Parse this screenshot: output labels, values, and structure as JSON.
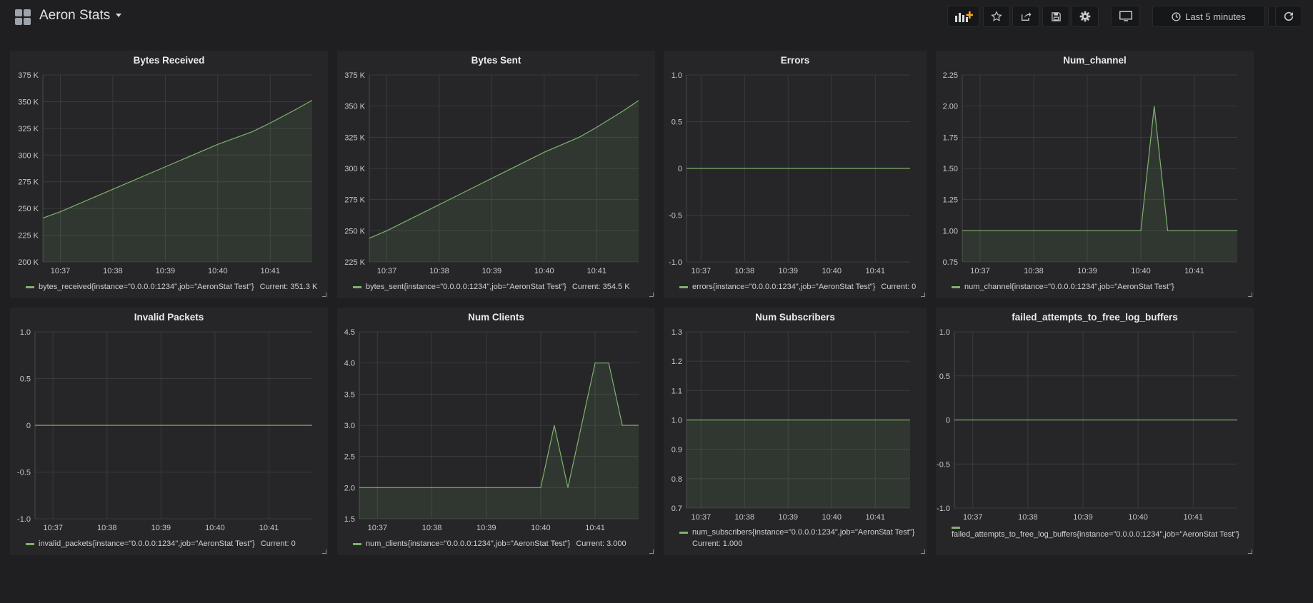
{
  "header": {
    "title": "Aeron Stats",
    "time_range_label": "Last 5 minutes"
  },
  "colors": {
    "series": "#7eb26d",
    "background": "#1f1f21",
    "panel": "#262628"
  },
  "panels": [
    {
      "title": "Bytes Received",
      "legend": "bytes_received{instance=\"0.0.0.0:1234\",job=\"AeronStat Test\"}",
      "current": "Current: 351.3 K",
      "chart_data": {
        "type": "area",
        "title": "Bytes Received",
        "x": [
          "10:36:40",
          "10:37:00",
          "10:38:00",
          "10:39:00",
          "10:40:00",
          "10:40:40",
          "10:41:00",
          "10:41:30",
          "10:41:48"
        ],
        "series": [
          {
            "name": "bytes_received{instance=\"0.0.0.0:1234\",job=\"AeronStat Test\"}",
            "values": [
              241000,
              247000,
              268000,
              289000,
              310000,
              322000,
              330000,
              343000,
              351300
            ]
          }
        ],
        "x_ticks": [
          "10:37",
          "10:38",
          "10:39",
          "10:40",
          "10:41"
        ],
        "y_ticks": [
          "375 K",
          "350 K",
          "325 K",
          "300 K",
          "275 K",
          "250 K",
          "225 K",
          "200 K"
        ],
        "ylim": [
          200000,
          375000
        ],
        "xlim": [
          "10:36:40",
          "10:41:48"
        ],
        "grid": true
      }
    },
    {
      "title": "Bytes Sent",
      "legend": "bytes_sent{instance=\"0.0.0.0:1234\",job=\"AeronStat Test\"}",
      "current": "Current: 354.5 K",
      "chart_data": {
        "type": "area",
        "title": "Bytes Sent",
        "x": [
          "10:36:40",
          "10:37:00",
          "10:38:00",
          "10:39:00",
          "10:40:00",
          "10:40:40",
          "10:41:00",
          "10:41:30",
          "10:41:48"
        ],
        "series": [
          {
            "name": "bytes_sent{instance=\"0.0.0.0:1234\",job=\"AeronStat Test\"}",
            "values": [
              244000,
              250000,
              271000,
              292000,
              313000,
              325000,
              333000,
              346000,
              354500
            ]
          }
        ],
        "x_ticks": [
          "10:37",
          "10:38",
          "10:39",
          "10:40",
          "10:41"
        ],
        "y_ticks": [
          "375 K",
          "350 K",
          "325 K",
          "300 K",
          "275 K",
          "250 K",
          "225 K"
        ],
        "ylim": [
          225000,
          375000
        ],
        "xlim": [
          "10:36:40",
          "10:41:48"
        ],
        "grid": true
      }
    },
    {
      "title": "Errors",
      "legend": "errors{instance=\"0.0.0.0:1234\",job=\"AeronStat Test\"}",
      "current": "Current: 0",
      "chart_data": {
        "type": "line",
        "title": "Errors",
        "x": [
          "10:36:40",
          "10:41:48"
        ],
        "series": [
          {
            "name": "errors{instance=\"0.0.0.0:1234\",job=\"AeronStat Test\"}",
            "values": [
              0,
              0
            ]
          }
        ],
        "x_ticks": [
          "10:37",
          "10:38",
          "10:39",
          "10:40",
          "10:41"
        ],
        "y_ticks": [
          "1.0",
          "0.5",
          "0",
          "-0.5",
          "-1.0"
        ],
        "ylim": [
          -1,
          1
        ],
        "xlim": [
          "10:36:40",
          "10:41:48"
        ],
        "grid": true
      }
    },
    {
      "title": "Num_channel",
      "legend": "num_channel{instance=\"0.0.0.0:1234\",job=\"AeronStat Test\"}",
      "current": "",
      "chart_data": {
        "type": "area",
        "title": "Num_channel",
        "x": [
          "10:36:40",
          "10:40:00",
          "10:40:15",
          "10:40:30",
          "10:41:48"
        ],
        "series": [
          {
            "name": "num_channel{instance=\"0.0.0.0:1234\",job=\"AeronStat Test\"}",
            "values": [
              1,
              1,
              2,
              1,
              1
            ]
          }
        ],
        "x_ticks": [
          "10:37",
          "10:38",
          "10:39",
          "10:40",
          "10:41"
        ],
        "y_ticks": [
          "2.25",
          "2.00",
          "1.75",
          "1.50",
          "1.25",
          "1.00",
          "0.75"
        ],
        "ylim": [
          0.75,
          2.25
        ],
        "xlim": [
          "10:36:40",
          "10:41:48"
        ],
        "grid": true
      }
    },
    {
      "title": "Invalid Packets",
      "legend": "invalid_packets{instance=\"0.0.0.0:1234\",job=\"AeronStat Test\"}",
      "current": "Current: 0",
      "chart_data": {
        "type": "line",
        "title": "Invalid Packets",
        "x": [
          "10:36:40",
          "10:41:48"
        ],
        "series": [
          {
            "name": "invalid_packets{instance=\"0.0.0.0:1234\",job=\"AeronStat Test\"}",
            "values": [
              0,
              0
            ]
          }
        ],
        "x_ticks": [
          "10:37",
          "10:38",
          "10:39",
          "10:40",
          "10:41"
        ],
        "y_ticks": [
          "1.0",
          "0.5",
          "0",
          "-0.5",
          "-1.0"
        ],
        "ylim": [
          -1,
          1
        ],
        "xlim": [
          "10:36:40",
          "10:41:48"
        ],
        "grid": true
      }
    },
    {
      "title": "Num Clients",
      "legend": "num_clients{instance=\"0.0.0.0:1234\",job=\"AeronStat Test\"}",
      "current": "Current: 3.000",
      "chart_data": {
        "type": "area",
        "title": "Num Clients",
        "x": [
          "10:36:40",
          "10:40:00",
          "10:40:15",
          "10:40:30",
          "10:41:00",
          "10:41:15",
          "10:41:30",
          "10:41:48"
        ],
        "series": [
          {
            "name": "num_clients{instance=\"0.0.0.0:1234\",job=\"AeronStat Test\"}",
            "values": [
              2,
              2,
              3,
              2,
              4,
              4,
              3,
              3
            ]
          }
        ],
        "x_ticks": [
          "10:37",
          "10:38",
          "10:39",
          "10:40",
          "10:41"
        ],
        "y_ticks": [
          "4.5",
          "4.0",
          "3.5",
          "3.0",
          "2.5",
          "2.0",
          "1.5"
        ],
        "ylim": [
          1.5,
          4.5
        ],
        "xlim": [
          "10:36:40",
          "10:41:48"
        ],
        "grid": true
      }
    },
    {
      "title": "Num Subscribers",
      "legend": "num_subscribers{instance=\"0.0.0.0:1234\",job=\"AeronStat Test\"}",
      "current": "Current: 1.000",
      "chart_data": {
        "type": "area",
        "title": "Num Subscribers",
        "x": [
          "10:36:40",
          "10:41:48"
        ],
        "series": [
          {
            "name": "num_subscribers{instance=\"0.0.0.0:1234\",job=\"AeronStat Test\"}",
            "values": [
              1,
              1
            ]
          }
        ],
        "x_ticks": [
          "10:37",
          "10:38",
          "10:39",
          "10:40",
          "10:41"
        ],
        "y_ticks": [
          "1.3",
          "1.2",
          "1.1",
          "1.0",
          "0.9",
          "0.8",
          "0.7"
        ],
        "ylim": [
          0.7,
          1.3
        ],
        "xlim": [
          "10:36:40",
          "10:41:48"
        ],
        "grid": true
      }
    },
    {
      "title": "failed_attempts_to_free_log_buffers",
      "legend": "failed_attempts_to_free_log_buffers{instance=\"0.0.0.0:1234\",job=\"AeronStat Test\"}",
      "current": "",
      "chart_data": {
        "type": "line",
        "title": "failed_attempts_to_free_log_buffers",
        "x": [
          "10:36:40",
          "10:41:48"
        ],
        "series": [
          {
            "name": "failed_attempts_to_free_log_buffers{instance=\"0.0.0.0:1234\",job=\"AeronStat Test\"}",
            "values": [
              0,
              0
            ]
          }
        ],
        "x_ticks": [
          "10:37",
          "10:38",
          "10:39",
          "10:40",
          "10:41"
        ],
        "y_ticks": [
          "1.0",
          "0.5",
          "0",
          "-0.5",
          "-1.0"
        ],
        "ylim": [
          -1,
          1
        ],
        "xlim": [
          "10:36:40",
          "10:41:48"
        ],
        "grid": true
      }
    }
  ]
}
